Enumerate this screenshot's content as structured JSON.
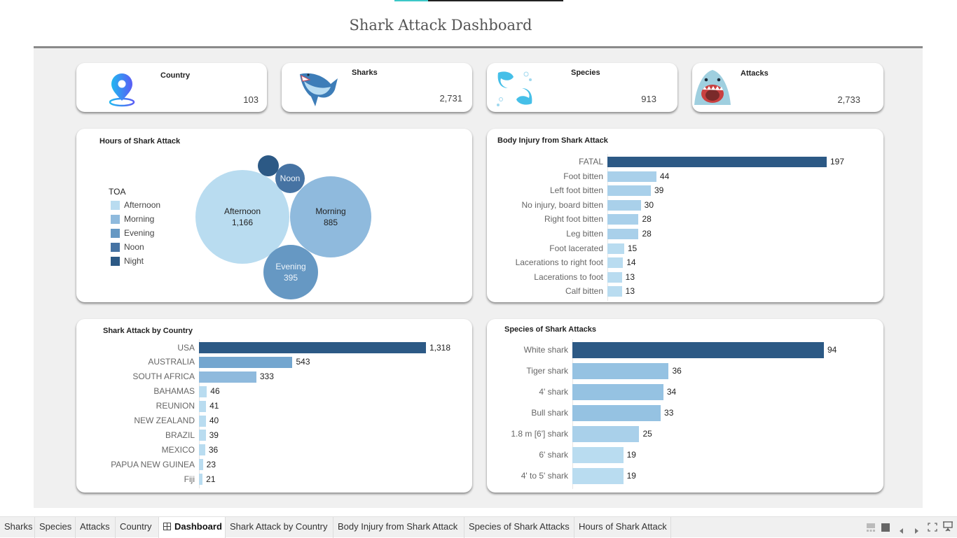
{
  "dashboard": {
    "title": "Shark Attack Dashboard"
  },
  "kpis": [
    {
      "title": "Country",
      "value": "103",
      "icon": "location-pin-icon"
    },
    {
      "title": "Sharks",
      "value": "2,731",
      "icon": "shark-icon"
    },
    {
      "title": "Species",
      "value": "913",
      "icon": "twin-sharks-icon"
    },
    {
      "title": "Attacks",
      "value": "2,733",
      "icon": "shark-jaws-icon"
    }
  ],
  "colors": {
    "dark": "#2c5985",
    "mid_dark": "#4673a3",
    "mid": "#6698c3",
    "light_mid": "#8fbadd",
    "light": "#b9dcf0",
    "lighter": "#a9d0ea"
  },
  "chart_data": [
    {
      "type": "bubble",
      "title": "Hours of Shark Attack",
      "legend_title": "TOA",
      "legend_placement": "left",
      "categories": [
        "Afternoon",
        "Morning",
        "Evening",
        "Noon",
        "Night"
      ],
      "values": [
        1166,
        885,
        395,
        null,
        null
      ],
      "labels": [
        {
          "name": "Afternoon",
          "value": "1,166"
        },
        {
          "name": "Morning",
          "value": "885"
        },
        {
          "name": "Evening",
          "value": "395"
        },
        {
          "name": "Noon",
          "value": ""
        },
        {
          "name": "Night",
          "value": ""
        }
      ],
      "colors": [
        "#b9dcf0",
        "#8fbadd",
        "#6698c3",
        "#4673a3",
        "#2c5985"
      ]
    },
    {
      "type": "bar",
      "orientation": "horizontal",
      "title": "Body Injury from Shark Attack",
      "categories": [
        "FATAL",
        "Foot bitten",
        "Left foot bitten",
        "No injury, board bitten",
        "Right foot bitten",
        "Leg bitten",
        "Foot lacerated",
        "Lacerations to right foot",
        "Lacerations to foot",
        "Calf bitten"
      ],
      "values": [
        197,
        44,
        39,
        30,
        28,
        28,
        15,
        14,
        13,
        13
      ],
      "value_labels": [
        "197",
        "44",
        "39",
        "30",
        "28",
        "28",
        "15",
        "14",
        "13",
        "13"
      ],
      "xlim": [
        0,
        197
      ]
    },
    {
      "type": "bar",
      "orientation": "horizontal",
      "title": "Shark Attack by Country",
      "categories": [
        "USA",
        "AUSTRALIA",
        "SOUTH AFRICA",
        "BAHAMAS",
        "REUNION",
        "NEW ZEALAND",
        "BRAZIL",
        "MEXICO",
        "PAPUA NEW GUINEA",
        "Fiji"
      ],
      "values": [
        1318,
        543,
        333,
        46,
        41,
        40,
        39,
        36,
        23,
        21
      ],
      "value_labels": [
        "1,318",
        "543",
        "333",
        "46",
        "41",
        "40",
        "39",
        "36",
        "23",
        "21"
      ],
      "xlim": [
        0,
        1318
      ]
    },
    {
      "type": "bar",
      "orientation": "horizontal",
      "title": "Species of Shark Attacks",
      "categories": [
        "White shark",
        "Tiger shark",
        "4' shark",
        "Bull shark",
        "1.8 m [6'] shark",
        "6' shark",
        "4' to 5' shark"
      ],
      "values": [
        94,
        36,
        34,
        33,
        25,
        19,
        19
      ],
      "value_labels": [
        "94",
        "36",
        "34",
        "33",
        "25",
        "19",
        "19"
      ],
      "xlim": [
        0,
        94
      ]
    }
  ],
  "tabs": [
    {
      "label": "Sharks",
      "active": false
    },
    {
      "label": "Species",
      "active": false
    },
    {
      "label": "Attacks",
      "active": false
    },
    {
      "label": "Country",
      "active": false
    },
    {
      "label": "Dashboard",
      "active": true,
      "icon": "dashboard-grid-icon"
    },
    {
      "label": "Shark Attack by Country",
      "active": false
    },
    {
      "label": "Body Injury from Shark Attack",
      "active": false
    },
    {
      "label": "Species of Shark Attacks",
      "active": false
    },
    {
      "label": "Hours of Shark Attack",
      "active": false
    }
  ],
  "controls": [
    "sheet-sorter-icon",
    "filmstrip-icon",
    "previous-icon",
    "next-icon",
    "fullscreen-icon",
    "presentation-icon"
  ]
}
